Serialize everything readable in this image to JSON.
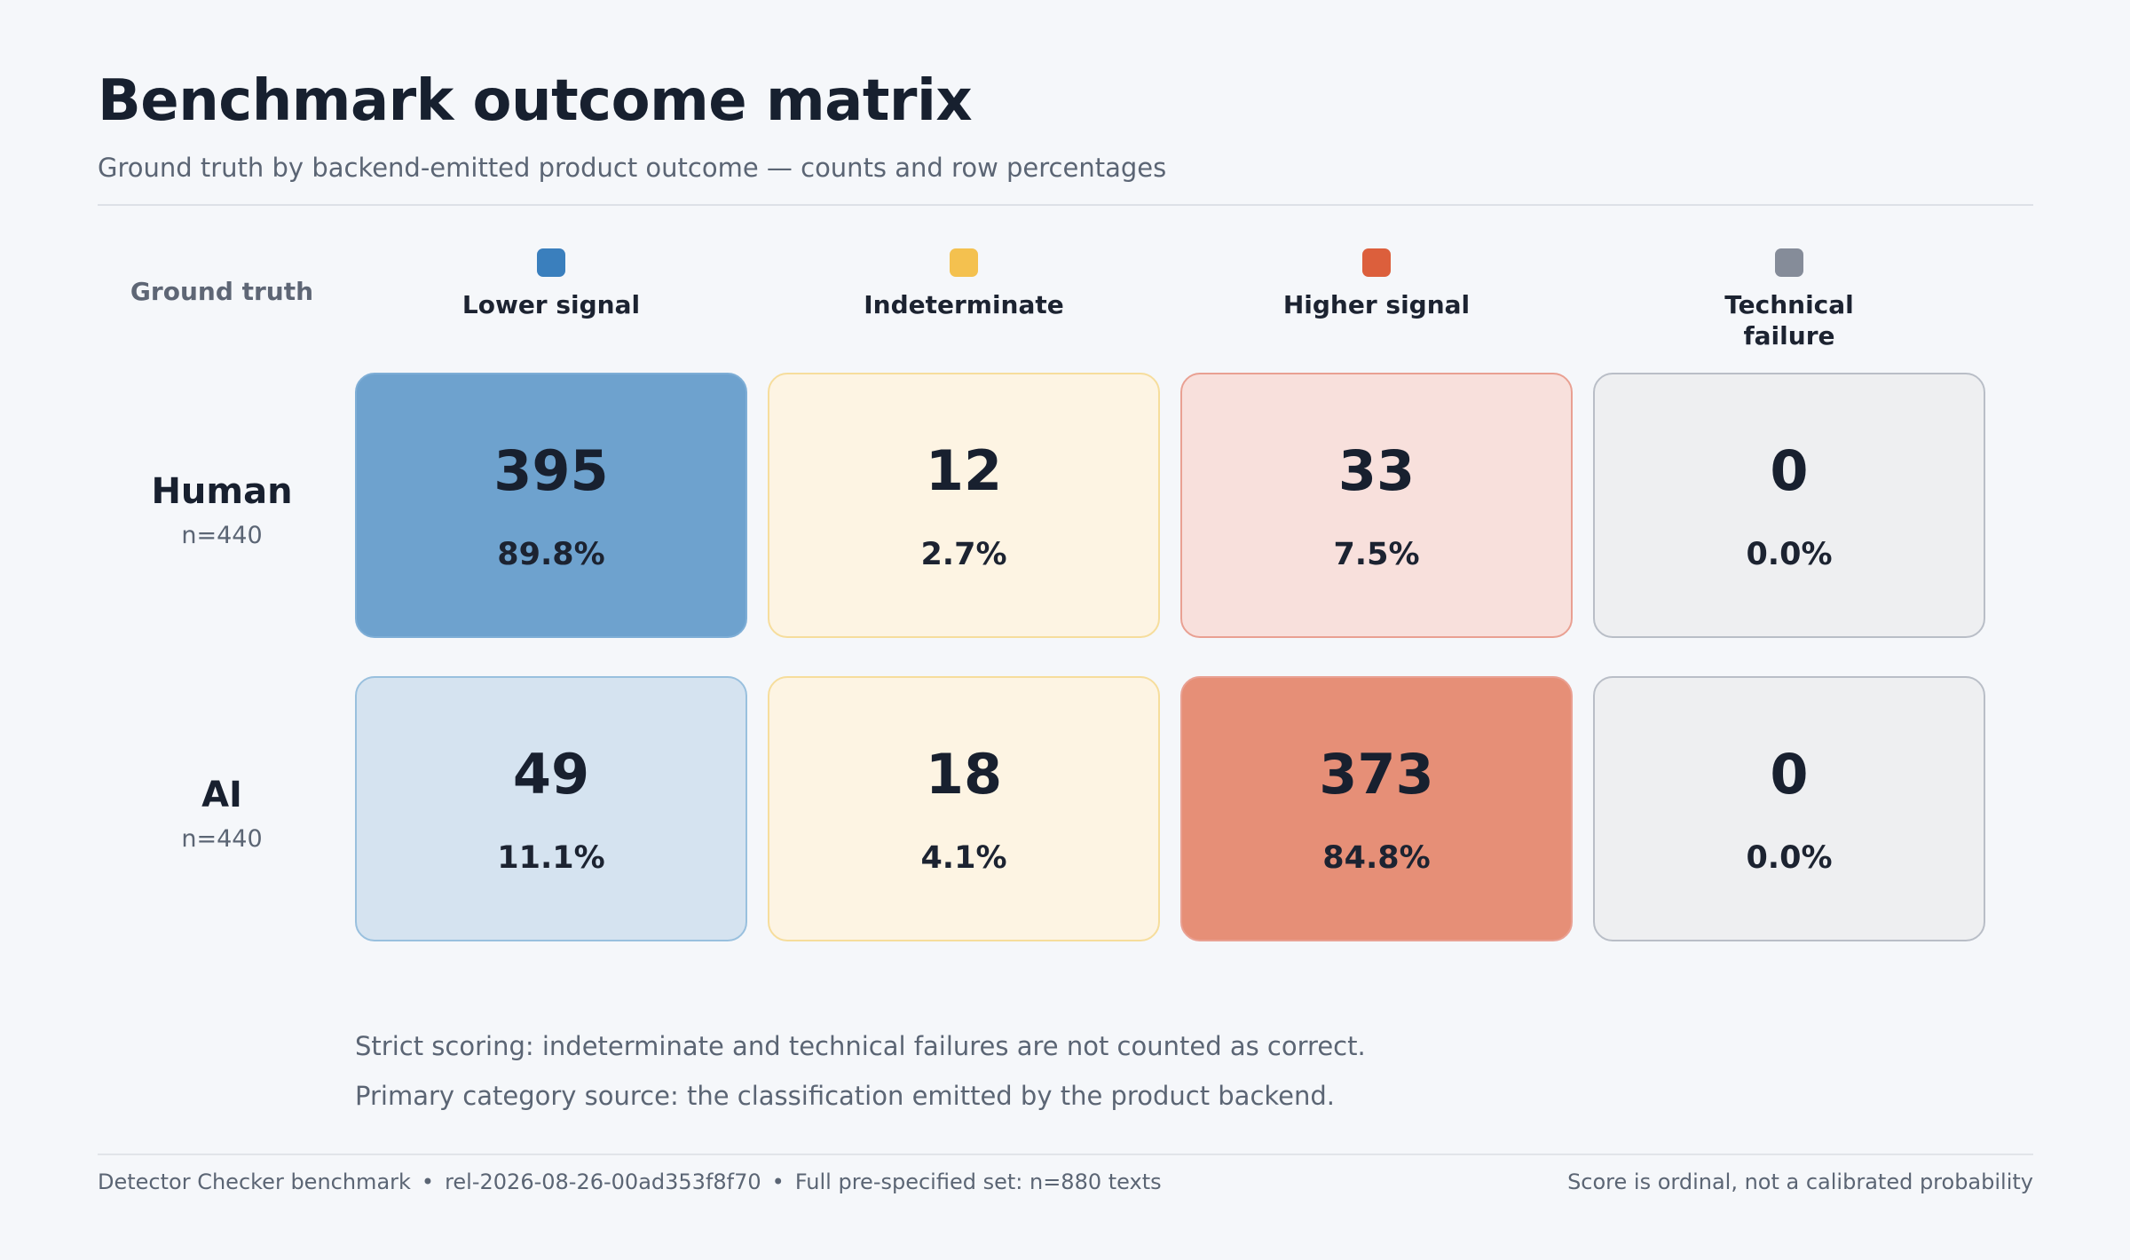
{
  "header": {
    "title": "Benchmark outcome matrix",
    "subtitle": "Ground truth by backend-emitted product outcome — counts and row percentages"
  },
  "chart_data": {
    "type": "heatmap",
    "row_axis_label": "Ground truth",
    "columns": [
      {
        "label": "Lower signal",
        "color": "#3a7fbd"
      },
      {
        "label": "Indeterminate",
        "color": "#f4c14f"
      },
      {
        "label": "Higher signal",
        "color": "#dc5f3c"
      },
      {
        "label": "Technical failure",
        "color": "#858c99"
      }
    ],
    "rows": [
      {
        "label": "Human",
        "n_label": "n=440",
        "counts": [
          395,
          12,
          33,
          0
        ],
        "percents": [
          "89.8%",
          "2.7%",
          "7.5%",
          "0.0%"
        ],
        "fills": [
          "#6ea2ce",
          "#fdf4e3",
          "#f8e0dc",
          "#eeeff1"
        ],
        "borders": [
          "#7eaed6",
          "#f6dd9c",
          "#e9a092",
          "#b9bec7"
        ]
      },
      {
        "label": "AI",
        "n_label": "n=440",
        "counts": [
          49,
          18,
          373,
          0
        ],
        "percents": [
          "11.1%",
          "4.1%",
          "84.8%",
          "0.0%"
        ],
        "fills": [
          "#d5e3f0",
          "#fdf4e3",
          "#e68f77",
          "#eeeff1"
        ],
        "borders": [
          "#99c0de",
          "#f6dd9c",
          "#e9a092",
          "#b9bec7"
        ]
      }
    ]
  },
  "notes": [
    "Strict scoring: indeterminate and technical failures are not counted as correct.",
    "Primary category source: the classification emitted by the product backend."
  ],
  "footer": {
    "product": "Detector Checker benchmark",
    "release": "rel-2026-08-26-00ad353f8f70",
    "set": "Full pre-specified set: n=880 texts",
    "separator": "•",
    "disclaimer": "Score is ordinal, not a calibrated probability"
  }
}
